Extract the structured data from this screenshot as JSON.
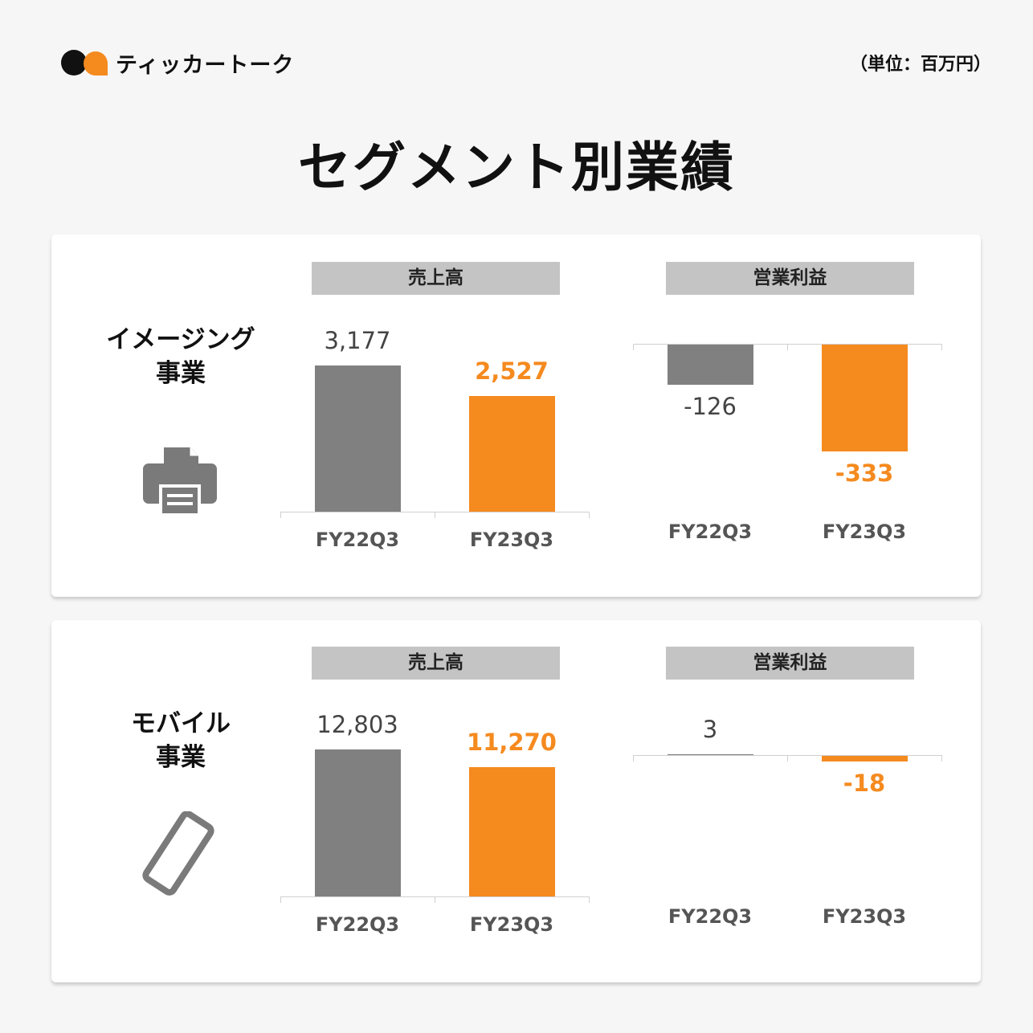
{
  "brand": {
    "name": "ティッカートーク"
  },
  "unit": "（単位：百万円）",
  "title": "セグメント別業績",
  "colors": {
    "prior": "#808080",
    "current": "#f58a1f",
    "header": "#c4c4c4"
  },
  "segments": [
    {
      "name_line1": "イメージング",
      "name_line2": "事業",
      "icon": "printer-icon"
    },
    {
      "name_line1": "モバイル",
      "name_line2": "事業",
      "icon": "smartphone-icon"
    }
  ],
  "chart_data": [
    {
      "type": "bar",
      "title": "売上高",
      "segment": "イメージング事業",
      "categories": [
        "FY22Q3",
        "FY23Q3"
      ],
      "values": [
        3177,
        2527
      ],
      "labels": [
        "3,177",
        "2,527"
      ],
      "ylim": [
        0,
        3500
      ]
    },
    {
      "type": "bar",
      "title": "営業利益",
      "segment": "イメージング事業",
      "categories": [
        "FY22Q3",
        "FY23Q3"
      ],
      "values": [
        -126,
        -333
      ],
      "labels": [
        "-126",
        "-333"
      ],
      "ylim": [
        -400,
        0
      ]
    },
    {
      "type": "bar",
      "title": "売上高",
      "segment": "モバイル事業",
      "categories": [
        "FY22Q3",
        "FY23Q3"
      ],
      "values": [
        12803,
        11270
      ],
      "labels": [
        "12,803",
        "11,270"
      ],
      "ylim": [
        0,
        14000
      ]
    },
    {
      "type": "bar",
      "title": "営業利益",
      "segment": "モバイル事業",
      "categories": [
        "FY22Q3",
        "FY23Q3"
      ],
      "values": [
        3,
        -18
      ],
      "labels": [
        "3",
        "-18"
      ],
      "ylim": [
        -400,
        0
      ]
    }
  ]
}
